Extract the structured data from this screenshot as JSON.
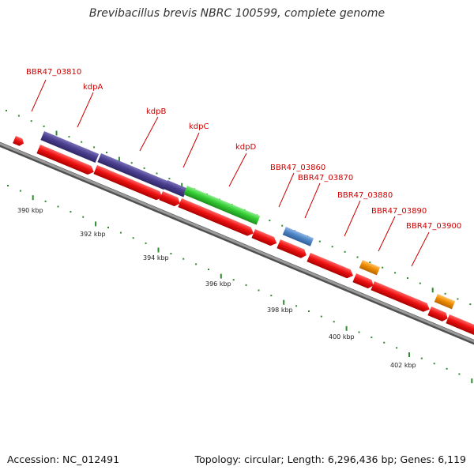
{
  "title": "Brevibacillus brevis NBRC 100599, complete genome",
  "footer": {
    "accession": "Accession: NC_012491",
    "topology": "Topology: circular; Length: 6,296,436 bp; Genes: 6,119"
  },
  "colors": {
    "backbone": "#808080",
    "cds": "#ee1111",
    "kdpA_B": "#4a3f8f",
    "kdpC": "#4a3f8f",
    "kdpD": "#33cc33",
    "BBR47_03870": "#4f86c6",
    "orange_feature": "#f08c00",
    "tick": "#2e8b2e",
    "label": "#cc0000"
  },
  "scale_labels": [
    "390 kbp",
    "392 kbp",
    "394 kbp",
    "396 kbp",
    "398 kbp",
    "400 kbp",
    "402 kbp"
  ],
  "genes": [
    {
      "label": "BBR47_03810"
    },
    {
      "label": "kdpA"
    },
    {
      "label": "kdpB"
    },
    {
      "label": "kdpC"
    },
    {
      "label": "kdpD"
    },
    {
      "label": "BBR47_03860"
    },
    {
      "label": "BBR47_03870"
    },
    {
      "label": "BBR47_03880"
    },
    {
      "label": "BBR47_03890"
    },
    {
      "label": "BBR47_03900"
    }
  ]
}
